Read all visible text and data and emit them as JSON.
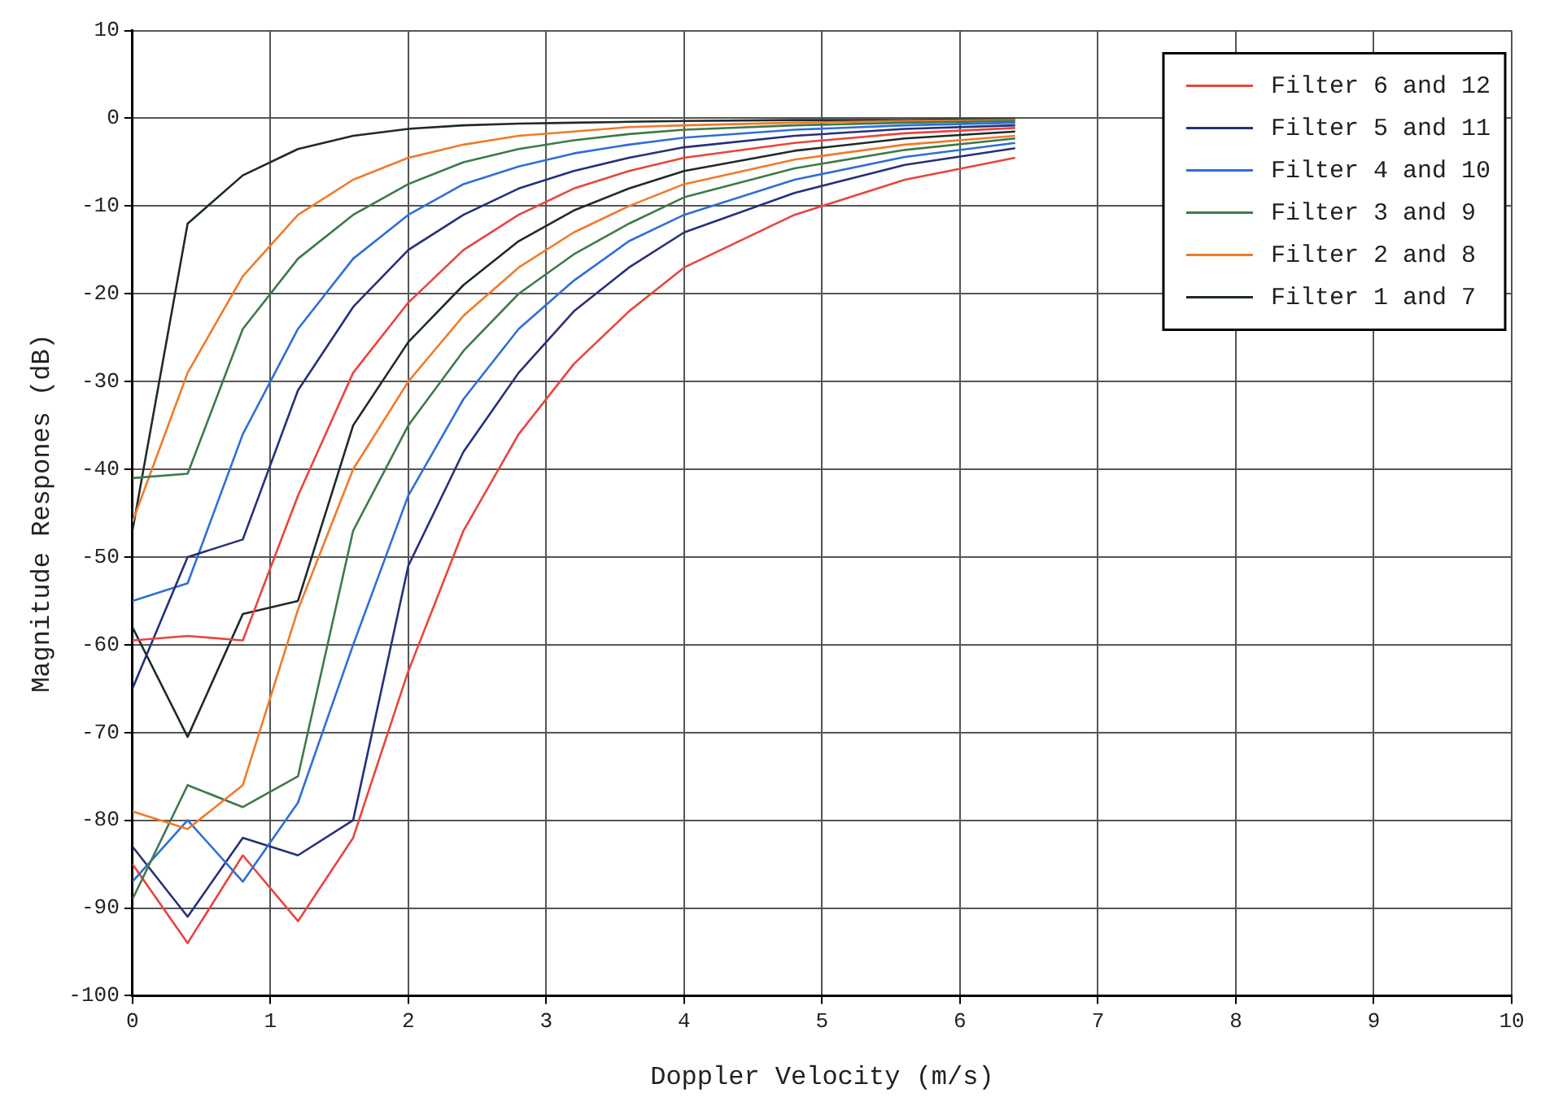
{
  "chart_data": {
    "type": "line",
    "xlabel": "Doppler Velocity (m/s)",
    "ylabel": "Magnitude Respones (dB)",
    "x": [
      0,
      0.4,
      0.8,
      1.2,
      1.6,
      2,
      2.4,
      2.8,
      3.2,
      3.6,
      4,
      4.8,
      5.6,
      6.4
    ],
    "xlim": [
      0,
      10
    ],
    "xticks": [
      0,
      1,
      2,
      3,
      4,
      5,
      6,
      7,
      8,
      9,
      10
    ],
    "ylim": [
      -100,
      10
    ],
    "yticks": [
      -100,
      -90,
      -80,
      -70,
      -60,
      -50,
      -40,
      -30,
      -20,
      -10,
      0,
      10
    ],
    "grid": true,
    "legend": "top right",
    "line_style": "solid",
    "marker": "none",
    "series": [
      {
        "name": "Filter 6 and 12",
        "color": "#e8453c",
        "values": [
          -59.5,
          -59,
          -59.5,
          -43,
          -29,
          -21,
          -15,
          -11,
          -8,
          -6,
          -4.5,
          -2.8,
          -1.7,
          -1.1
        ]
      },
      {
        "name": "Filter 5 and 11",
        "color": "#26307a",
        "values": [
          -65,
          -50,
          -48,
          -31,
          -21.5,
          -15,
          -11,
          -8,
          -6,
          -4.5,
          -3.3,
          -2,
          -1.2,
          -0.8
        ]
      },
      {
        "name": "Filter 4 and 10",
        "color": "#2f6fd6",
        "values": [
          -55,
          -53,
          -36,
          -24,
          -16,
          -11,
          -7.5,
          -5.5,
          -4,
          -3,
          -2.2,
          -1.3,
          -0.8,
          -0.5
        ]
      },
      {
        "name": "Filter 3 and 9",
        "color": "#3d7a4a",
        "values": [
          -41,
          -40.5,
          -24,
          -16,
          -11,
          -7.5,
          -5,
          -3.5,
          -2.5,
          -1.8,
          -1.3,
          -0.8,
          -0.5,
          -0.3
        ]
      },
      {
        "name": "Filter 2 and 8",
        "color": "#f07a2a",
        "values": [
          -46,
          -29,
          -18,
          -11,
          -7,
          -4.5,
          -3,
          -2,
          -1.5,
          -1,
          -0.8,
          -0.5,
          -0.3,
          -0.2
        ]
      },
      {
        "name": "Filter 1 and 7",
        "color": "#1e2a2a",
        "values": [
          -47,
          -12,
          -6.5,
          -3.5,
          -2,
          -1.2,
          -0.8,
          -0.6,
          -0.5,
          -0.4,
          -0.3,
          -0.2,
          -0.2,
          -0.1
        ]
      },
      {
        "color": "#1e2a2a",
        "values": [
          -58,
          -70.5,
          -56.5,
          -55,
          -35,
          -25.5,
          -19,
          -14,
          -10.5,
          -8,
          -6,
          -3.7,
          -2.3,
          -1.5
        ]
      },
      {
        "color": "#f07a2a",
        "values": [
          -79,
          -81,
          -76,
          -56,
          -40,
          -30,
          -22.5,
          -17,
          -13,
          -10,
          -7.5,
          -4.7,
          -3,
          -2
        ]
      },
      {
        "color": "#3d7a4a",
        "values": [
          -89,
          -76,
          -78.5,
          -75,
          -47,
          -35,
          -26.5,
          -20,
          -15.5,
          -12,
          -9,
          -5.7,
          -3.6,
          -2.3
        ]
      },
      {
        "color": "#2f6fd6",
        "values": [
          -87,
          -80,
          -87,
          -78,
          -60,
          -43,
          -32,
          -24,
          -18.5,
          -14,
          -11,
          -7,
          -4.4,
          -2.8
        ]
      },
      {
        "color": "#26307a",
        "values": [
          -83,
          -91,
          -82,
          -84,
          -80,
          -51,
          -38,
          -29,
          -22,
          -17,
          -13,
          -8.5,
          -5.3,
          -3.4
        ]
      },
      {
        "color": "#e8453c",
        "values": [
          -85,
          -94,
          -84,
          -91.5,
          -82,
          -63,
          -47,
          -36,
          -28,
          -22,
          -17,
          -11,
          -7,
          -4.5
        ]
      }
    ]
  }
}
